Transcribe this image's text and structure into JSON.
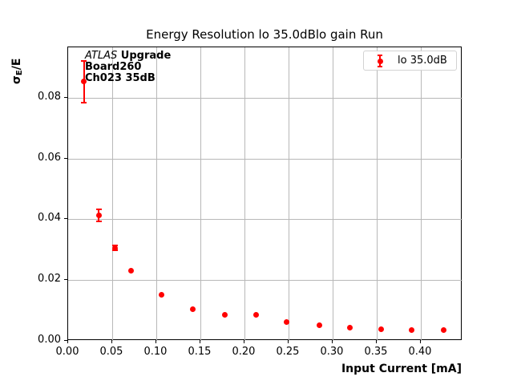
{
  "figure": {
    "title": "Energy Resolution lo 35.0dBlo gain Run",
    "xlabel": "Input Current [mA]",
    "ylabel_parts": {
      "sigma": "σ",
      "sub": "E",
      "rest": "/E"
    },
    "annotation": {
      "line1_italic": "ATLAS",
      "line1_bold": " Upgrade",
      "line2": "Board260",
      "line3": "Ch023 35dB"
    },
    "legend": {
      "label": "lo 35.0dB"
    },
    "colors": {
      "series": "#ff0000",
      "grid": "#b8b8b8",
      "spine": "#000000",
      "legend_border": "#d2d2d2"
    }
  },
  "chart_data": {
    "type": "scatter",
    "title": "Energy Resolution lo 35.0dBlo gain Run",
    "xlabel": "Input Current [mA]",
    "ylabel": "σ_E/E",
    "grid": true,
    "legend_position": "upper right",
    "xlim": [
      0,
      0.4473
    ],
    "ylim": [
      0,
      0.0966
    ],
    "xticks": [
      0.0,
      0.05,
      0.1,
      0.15,
      0.2,
      0.25,
      0.3,
      0.35,
      0.4
    ],
    "yticks": [
      0.0,
      0.02,
      0.04,
      0.06,
      0.08
    ],
    "series": [
      {
        "name": "lo 35.0dB",
        "color": "#ff0000",
        "marker": "o",
        "x": [
          0.018,
          0.035,
          0.053,
          0.071,
          0.106,
          0.141,
          0.178,
          0.213,
          0.248,
          0.285,
          0.32,
          0.355,
          0.39,
          0.426
        ],
        "y": [
          0.0853,
          0.0412,
          0.0306,
          0.023,
          0.0151,
          0.0104,
          0.0085,
          0.0085,
          0.0062,
          0.0051,
          0.0043,
          0.0039,
          0.0036,
          0.0036
        ],
        "yerr": [
          0.0069,
          0.002,
          0.0009,
          0.0005,
          0.0003,
          0.0003,
          0.0002,
          0.0002,
          0.0002,
          0.0002,
          0.0002,
          0.0002,
          0.0002,
          0.0002
        ]
      }
    ]
  }
}
